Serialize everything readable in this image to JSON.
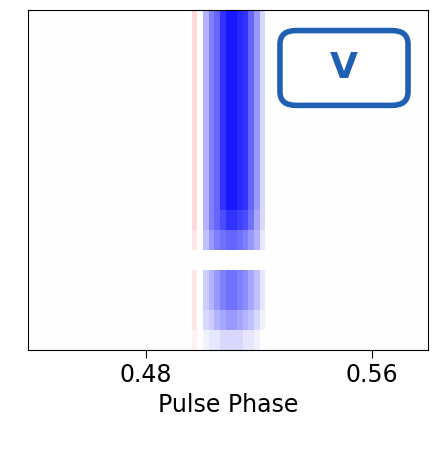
{
  "chart_data": {
    "type": "heatmap",
    "xlabel": "Pulse Phase",
    "annotations": [
      "V"
    ],
    "xlim": [
      0.438,
      0.58
    ],
    "xticks": [
      0.48,
      0.56
    ],
    "tick_labels": "x",
    "clim": [
      -1,
      1
    ],
    "cells": [
      [
        0,
        0,
        0,
        0,
        0,
        0,
        0,
        0,
        0,
        0,
        0,
        0,
        0,
        0,
        0,
        0,
        0,
        0,
        0,
        0,
        0,
        0,
        0,
        0,
        0,
        0,
        0,
        0,
        0,
        0.15,
        0,
        -0.3,
        -0.5,
        -0.6,
        -0.8,
        -0.9,
        -0.9,
        -0.85,
        -0.8,
        -0.6,
        -0.4,
        -0.15,
        0,
        0,
        0,
        0,
        0,
        0,
        0,
        0,
        0,
        0,
        0,
        0,
        0,
        0,
        0,
        0,
        0,
        0,
        0,
        0,
        0,
        0,
        0,
        0,
        0,
        0,
        0,
        0,
        0
      ],
      [
        0,
        0,
        0,
        0,
        0,
        0,
        0,
        0,
        0,
        0,
        0,
        0,
        0,
        0,
        0,
        0,
        0,
        0,
        0,
        0,
        0,
        0,
        0,
        0,
        0,
        0,
        0,
        0,
        0,
        0.15,
        0,
        -0.3,
        -0.5,
        -0.6,
        -0.8,
        -0.9,
        -0.9,
        -0.85,
        -0.8,
        -0.6,
        -0.4,
        -0.15,
        0,
        0,
        0,
        0,
        0,
        0,
        0,
        0,
        0,
        0,
        0,
        0,
        0,
        0,
        0,
        0,
        0,
        0,
        0,
        0,
        0,
        0,
        0,
        0,
        0,
        0,
        0,
        0,
        0
      ],
      [
        0,
        0,
        0,
        0,
        0,
        0,
        0,
        0,
        0,
        0,
        0,
        0,
        0,
        0,
        0,
        0,
        0,
        0,
        0,
        0,
        0,
        0,
        0,
        0,
        0,
        0,
        0,
        0,
        0,
        0.15,
        0,
        -0.3,
        -0.5,
        -0.6,
        -0.8,
        -0.9,
        -0.9,
        -0.85,
        -0.8,
        -0.6,
        -0.4,
        -0.15,
        0,
        0,
        0,
        0,
        0,
        0,
        0,
        0,
        0,
        0,
        0,
        0,
        0,
        0,
        0,
        0,
        0,
        0,
        0,
        0,
        0,
        0,
        0,
        0,
        0,
        0,
        0,
        0,
        0
      ],
      [
        0,
        0,
        0,
        0,
        0,
        0,
        0,
        0,
        0,
        0,
        0,
        0,
        0,
        0,
        0,
        0,
        0,
        0,
        0,
        0,
        0,
        0,
        0,
        0,
        0,
        0,
        0,
        0,
        0,
        0.15,
        0,
        -0.3,
        -0.5,
        -0.6,
        -0.8,
        -0.9,
        -0.9,
        -0.85,
        -0.8,
        -0.6,
        -0.4,
        -0.15,
        0,
        0,
        0,
        0,
        0,
        0,
        0,
        0,
        0,
        0,
        0,
        0,
        0,
        0,
        0,
        0,
        0,
        0,
        0,
        0,
        0,
        0,
        0,
        0,
        0,
        0,
        0,
        0,
        0
      ],
      [
        0,
        0,
        0,
        0,
        0,
        0,
        0,
        0,
        0,
        0,
        0,
        0,
        0,
        0,
        0,
        0,
        0,
        0,
        0,
        0,
        0,
        0,
        0,
        0,
        0,
        0,
        0,
        0,
        0,
        0.15,
        0,
        -0.3,
        -0.5,
        -0.6,
        -0.8,
        -0.9,
        -0.9,
        -0.85,
        -0.8,
        -0.6,
        -0.4,
        -0.15,
        0,
        0,
        0,
        0,
        0,
        0,
        0,
        0,
        0,
        0,
        0,
        0,
        0,
        0,
        0,
        0,
        0,
        0,
        0,
        0,
        0,
        0,
        0,
        0,
        0,
        0,
        0,
        0,
        0
      ],
      [
        0,
        0,
        0,
        0,
        0,
        0,
        0,
        0,
        0,
        0,
        0,
        0,
        0,
        0,
        0,
        0,
        0,
        0,
        0,
        0,
        0,
        0,
        0,
        0,
        0,
        0,
        0,
        0,
        0,
        0.15,
        0,
        -0.3,
        -0.5,
        -0.6,
        -0.8,
        -0.9,
        -0.9,
        -0.85,
        -0.8,
        -0.6,
        -0.4,
        -0.15,
        0,
        0,
        0,
        0,
        0,
        0,
        0,
        0,
        0,
        0,
        0,
        0,
        0,
        0,
        0,
        0,
        0,
        0,
        0,
        0,
        0,
        0,
        0,
        0,
        0,
        0,
        0,
        0,
        0
      ],
      [
        0,
        0,
        0,
        0,
        0,
        0,
        0,
        0,
        0,
        0,
        0,
        0,
        0,
        0,
        0,
        0,
        0,
        0,
        0,
        0,
        0,
        0,
        0,
        0,
        0,
        0,
        0,
        0,
        0,
        0.15,
        0,
        -0.3,
        -0.5,
        -0.6,
        -0.8,
        -0.9,
        -0.9,
        -0.85,
        -0.8,
        -0.6,
        -0.4,
        -0.15,
        0,
        0,
        0,
        0,
        0,
        0,
        0,
        0,
        0,
        0,
        0,
        0,
        0,
        0,
        0,
        0,
        0,
        0,
        0,
        0,
        0,
        0,
        0,
        0,
        0,
        0,
        0,
        0,
        0
      ],
      [
        0,
        0,
        0,
        0,
        0,
        0,
        0,
        0,
        0,
        0,
        0,
        0,
        0,
        0,
        0,
        0,
        0,
        0,
        0,
        0,
        0,
        0,
        0,
        0,
        0,
        0,
        0,
        0,
        0,
        0.15,
        0,
        -0.3,
        -0.5,
        -0.6,
        -0.8,
        -0.9,
        -0.9,
        -0.85,
        -0.8,
        -0.6,
        -0.4,
        -0.15,
        0,
        0,
        0,
        0,
        0,
        0,
        0,
        0,
        0,
        0,
        0,
        0,
        0,
        0,
        0,
        0,
        0,
        0,
        0,
        0,
        0,
        0,
        0,
        0,
        0,
        0,
        0,
        0,
        0
      ],
      [
        0,
        0,
        0,
        0,
        0,
        0,
        0,
        0,
        0,
        0,
        0,
        0,
        0,
        0,
        0,
        0,
        0,
        0,
        0,
        0,
        0,
        0,
        0,
        0,
        0,
        0,
        0,
        0,
        0,
        0.15,
        0,
        -0.3,
        -0.5,
        -0.6,
        -0.8,
        -0.9,
        -0.9,
        -0.85,
        -0.8,
        -0.6,
        -0.4,
        -0.15,
        0,
        0,
        0,
        0,
        0,
        0,
        0,
        0,
        0,
        0,
        0,
        0,
        0,
        0,
        0,
        0,
        0,
        0,
        0,
        0,
        0,
        0,
        0,
        0,
        0,
        0,
        0,
        0,
        0
      ],
      [
        0,
        0,
        0,
        0,
        0,
        0,
        0,
        0,
        0,
        0,
        0,
        0,
        0,
        0,
        0,
        0,
        0,
        0,
        0,
        0,
        0,
        0,
        0,
        0,
        0,
        0,
        0,
        0,
        0,
        0.15,
        0,
        -0.3,
        -0.5,
        -0.6,
        -0.8,
        -0.9,
        -0.9,
        -0.85,
        -0.8,
        -0.6,
        -0.4,
        -0.15,
        0,
        0,
        0,
        0,
        0,
        0,
        0,
        0,
        0,
        0,
        0,
        0,
        0,
        0,
        0,
        0,
        0,
        0,
        0,
        0,
        0,
        0,
        0,
        0,
        0,
        0,
        0,
        0,
        0
      ],
      [
        0,
        0,
        0,
        0,
        0,
        0,
        0,
        0,
        0,
        0,
        0,
        0,
        0,
        0,
        0,
        0,
        0,
        0,
        0,
        0,
        0,
        0,
        0,
        0,
        0,
        0,
        0,
        0,
        0,
        0.15,
        0,
        -0.3,
        -0.5,
        -0.6,
        -0.7,
        -0.8,
        -0.8,
        -0.75,
        -0.7,
        -0.55,
        -0.35,
        -0.15,
        0,
        0,
        0,
        0,
        0,
        0,
        0,
        0,
        0,
        0,
        0,
        0,
        0,
        0,
        0,
        0,
        0,
        0,
        0,
        0,
        0,
        0,
        0,
        0,
        0,
        0,
        0,
        0,
        0
      ],
      [
        0,
        0,
        0,
        0,
        0,
        0,
        0,
        0,
        0,
        0,
        0,
        0,
        0,
        0,
        0,
        0,
        0,
        0,
        0,
        0,
        0,
        0,
        0,
        0,
        0,
        0,
        0,
        0,
        0,
        0.1,
        0,
        -0.25,
        -0.4,
        -0.5,
        -0.55,
        -0.6,
        -0.6,
        -0.55,
        -0.5,
        -0.4,
        -0.3,
        -0.1,
        0,
        0,
        0,
        0,
        0,
        0,
        0,
        0,
        0,
        0,
        0,
        0,
        0,
        0,
        0,
        0,
        0,
        0,
        0,
        0,
        0,
        0,
        0,
        0,
        0,
        0,
        0,
        0,
        0
      ],
      [
        0,
        0,
        0,
        0,
        0,
        0,
        0,
        0,
        0,
        0,
        0,
        0,
        0,
        0,
        0,
        0,
        0,
        0,
        0,
        0,
        0,
        0,
        0,
        0,
        0,
        0,
        0,
        0,
        0,
        0,
        0,
        0,
        0,
        0,
        0,
        0,
        0,
        0,
        0,
        0,
        0,
        0,
        0,
        0,
        0,
        0,
        0,
        0,
        0,
        0,
        0,
        0,
        0,
        0,
        0,
        0,
        0,
        0,
        0,
        0,
        0,
        0,
        0,
        0,
        0,
        0,
        0,
        0,
        0,
        0,
        0
      ],
      [
        0,
        0,
        0,
        0,
        0,
        0,
        0,
        0,
        0,
        0,
        0,
        0,
        0,
        0,
        0,
        0,
        0,
        0,
        0,
        0,
        0,
        0,
        0,
        0,
        0,
        0,
        0,
        0,
        0,
        0.1,
        0,
        -0.2,
        -0.3,
        -0.4,
        -0.5,
        -0.55,
        -0.55,
        -0.5,
        -0.45,
        -0.35,
        -0.25,
        -0.1,
        0,
        0,
        0,
        0,
        0,
        0,
        0,
        0,
        0,
        0,
        0,
        0,
        0,
        0,
        0,
        0,
        0,
        0,
        0,
        0,
        0,
        0,
        0,
        0,
        0,
        0,
        0,
        0,
        0
      ],
      [
        0,
        0,
        0,
        0,
        0,
        0,
        0,
        0,
        0,
        0,
        0,
        0,
        0,
        0,
        0,
        0,
        0,
        0,
        0,
        0,
        0,
        0,
        0,
        0,
        0,
        0,
        0,
        0,
        0,
        0.1,
        0,
        -0.2,
        -0.3,
        -0.4,
        -0.5,
        -0.55,
        -0.55,
        -0.5,
        -0.45,
        -0.35,
        -0.25,
        -0.1,
        0,
        0,
        0,
        0,
        0,
        0,
        0,
        0,
        0,
        0,
        0,
        0,
        0,
        0,
        0,
        0,
        0,
        0,
        0,
        0,
        0,
        0,
        0,
        0,
        0,
        0,
        0,
        0,
        0
      ],
      [
        0,
        0,
        0,
        0,
        0,
        0,
        0,
        0,
        0,
        0,
        0,
        0,
        0,
        0,
        0,
        0,
        0,
        0,
        0,
        0,
        0,
        0,
        0,
        0,
        0,
        0,
        0,
        0,
        0,
        0.1,
        0,
        -0.15,
        -0.2,
        -0.3,
        -0.35,
        -0.4,
        -0.4,
        -0.35,
        -0.3,
        -0.25,
        -0.15,
        -0.05,
        0,
        0,
        0,
        0,
        0,
        0,
        0,
        0,
        0,
        0,
        0,
        0,
        0,
        0,
        0,
        0,
        0,
        0,
        0,
        0,
        0,
        0,
        0,
        0,
        0,
        0,
        0,
        0,
        0
      ],
      [
        0,
        0,
        0,
        0,
        0,
        0,
        0,
        0,
        0,
        0,
        0,
        0,
        0,
        0,
        0,
        0,
        0,
        0,
        0,
        0,
        0,
        0,
        0,
        0,
        0,
        0,
        0,
        0,
        0,
        0.05,
        0,
        -0.05,
        -0.1,
        -0.1,
        -0.15,
        -0.15,
        -0.15,
        -0.15,
        -0.1,
        -0.1,
        -0.05,
        0,
        0,
        0,
        0,
        0,
        0,
        0,
        0,
        0,
        0,
        0,
        0,
        0,
        0,
        0,
        0,
        0,
        0,
        0,
        0,
        0,
        0,
        0,
        0,
        0,
        0,
        0,
        0,
        0,
        0
      ]
    ]
  }
}
